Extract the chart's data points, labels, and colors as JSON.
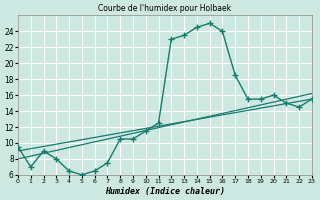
{
  "title": "Courbe de l'humidex pour Holbaek",
  "xlabel": "Humidex (Indice chaleur)",
  "bg_color": "#cce8e0",
  "grid_color": "#ffffff",
  "line_color": "#1a7a6e",
  "xlim": [
    0,
    23
  ],
  "ylim": [
    6,
    26
  ],
  "xticks": [
    0,
    1,
    2,
    3,
    4,
    5,
    6,
    7,
    8,
    9,
    10,
    11,
    12,
    13,
    14,
    15,
    16,
    17,
    18,
    19,
    20,
    21,
    22,
    23
  ],
  "yticks": [
    6,
    8,
    10,
    12,
    14,
    16,
    18,
    20,
    22,
    24
  ],
  "curve1_x": [
    0,
    1,
    2,
    3,
    4,
    5,
    6,
    7,
    8,
    9,
    10,
    11,
    12,
    13,
    14,
    15,
    16,
    17,
    18,
    19,
    20,
    21,
    22,
    23
  ],
  "curve1_y": [
    9.5,
    7.0,
    9.0,
    8.0,
    6.5,
    6.0,
    6.5,
    7.5,
    10.5,
    10.5,
    11.5,
    12.5,
    23.0,
    23.5,
    24.5,
    25.0,
    24.0,
    18.5,
    15.5,
    15.5,
    16.0,
    15.0,
    14.5,
    15.5
  ],
  "curve2_x": [
    0,
    23
  ],
  "curve2_y": [
    9.0,
    15.5
  ],
  "curve3_x": [
    0,
    23
  ],
  "curve3_y": [
    8.0,
    16.2
  ]
}
